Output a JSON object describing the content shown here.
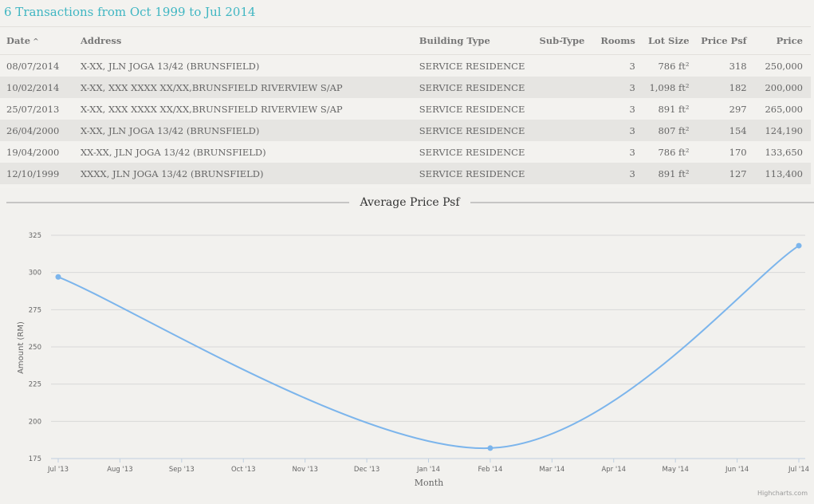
{
  "heading": "6 Transactions from Oct 1999 to Jul 2014",
  "table": {
    "columns": {
      "date": "Date",
      "sort_indicator": "^",
      "address": "Address",
      "building_type": "Building Type",
      "sub_type": "Sub-Type",
      "rooms": "Rooms",
      "lot_size": "Lot Size",
      "price_psf": "Price Psf",
      "price": "Price"
    },
    "rows": [
      {
        "date": "08/07/2014",
        "address": "X-XX, JLN JOGA 13/42 (BRUNSFIELD)",
        "building_type": "SERVICE RESIDENCE",
        "sub_type": "",
        "rooms": "3",
        "lot_size": "786 ft²",
        "price_psf": "318",
        "price": "250,000"
      },
      {
        "date": "10/02/2014",
        "address": "X-XX, XXX XXXX XX/XX,BRUNSFIELD RIVERVIEW S/AP",
        "building_type": "SERVICE RESIDENCE",
        "sub_type": "",
        "rooms": "3",
        "lot_size": "1,098 ft²",
        "price_psf": "182",
        "price": "200,000"
      },
      {
        "date": "25/07/2013",
        "address": "X-XX, XXX XXXX XX/XX,BRUNSFIELD RIVERVIEW S/AP",
        "building_type": "SERVICE RESIDENCE",
        "sub_type": "",
        "rooms": "3",
        "lot_size": "891 ft²",
        "price_psf": "297",
        "price": "265,000"
      },
      {
        "date": "26/04/2000",
        "address": "X-XX, JLN JOGA 13/42 (BRUNSFIELD)",
        "building_type": "SERVICE RESIDENCE",
        "sub_type": "",
        "rooms": "3",
        "lot_size": "807 ft²",
        "price_psf": "154",
        "price": "124,190"
      },
      {
        "date": "19/04/2000",
        "address": "XX-XX, JLN JOGA 13/42 (BRUNSFIELD)",
        "building_type": "SERVICE RESIDENCE",
        "sub_type": "",
        "rooms": "3",
        "lot_size": "786 ft²",
        "price_psf": "170",
        "price": "133,650"
      },
      {
        "date": "12/10/1999",
        "address": "XXXX, JLN JOGA 13/42 (BRUNSFIELD)",
        "building_type": "SERVICE RESIDENCE",
        "sub_type": "",
        "rooms": "3",
        "lot_size": "891 ft²",
        "price_psf": "127",
        "price": "113,400"
      }
    ]
  },
  "chart_data": {
    "type": "line",
    "title": "Average Price Psf",
    "xlabel": "Month",
    "ylabel": "Amount (RM)",
    "categories": [
      "Jul '13",
      "Aug '13",
      "Sep '13",
      "Oct '13",
      "Nov '13",
      "Dec '13",
      "Jan '14",
      "Feb '14",
      "Mar '14",
      "Apr '14",
      "May '14",
      "Jun '14",
      "Jul '14"
    ],
    "series": [
      {
        "points": [
          {
            "x": "Jul '13",
            "y": 297
          },
          {
            "x": "Feb '14",
            "y": 182
          },
          {
            "x": "Jul '14",
            "y": 318
          }
        ]
      }
    ],
    "yticks": [
      175,
      200,
      225,
      250,
      275,
      300,
      325
    ],
    "ylim": [
      175,
      325
    ],
    "grid": true,
    "credit": "Highcharts.com",
    "colors": {
      "line": "#7cb5ec",
      "grid": "#d8d8d8",
      "axis": "#c0d0e0"
    }
  }
}
